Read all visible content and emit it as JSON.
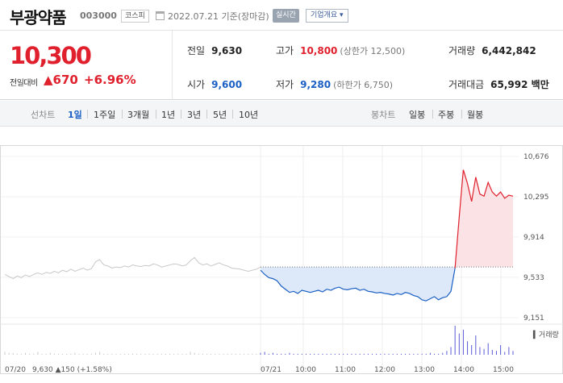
{
  "header": {
    "stock_name": "부광약품",
    "stock_code": "003000",
    "market": "코스피",
    "date_text": "2022.07.21  기준(장마감)",
    "realtime_label": "실시간",
    "company_btn": "기업개요 ▾"
  },
  "price": {
    "current": "10,300",
    "change_label": "전일대비",
    "change_value": "▲670",
    "change_pct": "+6.96%"
  },
  "stats": {
    "prev_label": "전일",
    "prev_value": "9,630",
    "high_label": "고가",
    "high_value": "10,800",
    "high_sub": "(상한가 12,500)",
    "volume_label": "거래량",
    "volume_value": "6,442,842",
    "open_label": "시가",
    "open_value": "9,600",
    "low_label": "저가",
    "low_value": "9,280",
    "low_sub": "(하한가 6,750)",
    "amount_label": "거래대금",
    "amount_value": "65,992 백만"
  },
  "tabs": {
    "line_label": "선차트",
    "line_items": [
      "1일",
      "1주일",
      "3개월",
      "1년",
      "3년",
      "5년",
      "10년"
    ],
    "active_line": "1일",
    "candle_label": "봉차트",
    "candle_items": [
      "일봉",
      "주봉",
      "월봉"
    ]
  },
  "colors": {
    "up": "#e0202d",
    "down": "#1a5fc4",
    "prev_day_line": "#c8c8c8",
    "fill_down": "#dde8f8",
    "fill_up": "#fbe3e5"
  },
  "chart_data": {
    "type": "line",
    "ylim": [
      9151,
      10676
    ],
    "y_ticks": [
      10676,
      10295,
      9914,
      9533,
      9151
    ],
    "y_tick_labels": [
      "10,676",
      "10,295",
      "9,914",
      "9,533",
      "9,151"
    ],
    "x_tick_labels": [
      "07/21",
      "10:00",
      "11:00",
      "12:00",
      "13:00",
      "14:00",
      "15:00"
    ],
    "reference_price": 9630,
    "volume_label": "거래량",
    "prev_day": {
      "date": "07/20",
      "summary": "9,630 ▲150 (+1.58%)",
      "values": [
        9560,
        9540,
        9520,
        9545,
        9530,
        9555,
        9540,
        9560,
        9575,
        9560,
        9580,
        9570,
        9590,
        9575,
        9600,
        9585,
        9610,
        9590,
        9605,
        9620,
        9600,
        9615,
        9680,
        9700,
        9650,
        9640,
        9620,
        9630,
        9625,
        9640,
        9630,
        9650,
        9640,
        9635,
        9645,
        9640,
        9660,
        9650,
        9630,
        9640,
        9650,
        9660,
        9655,
        9640,
        9650,
        9690,
        9720,
        9670,
        9650,
        9660,
        9640,
        9655,
        9670,
        9650,
        9640,
        9620,
        9615,
        9610,
        9600,
        9590,
        9600,
        9610,
        9630
      ]
    },
    "today": {
      "values": [
        9600,
        9560,
        9530,
        9520,
        9500,
        9450,
        9420,
        9390,
        9400,
        9380,
        9410,
        9400,
        9390,
        9400,
        9410,
        9395,
        9420,
        9410,
        9430,
        9440,
        9420,
        9415,
        9425,
        9430,
        9410,
        9420,
        9400,
        9395,
        9385,
        9390,
        9380,
        9375,
        9365,
        9380,
        9370,
        9390,
        9380,
        9360,
        9350,
        9320,
        9310,
        9330,
        9350,
        9320,
        9340,
        9350,
        9400,
        9620,
        10100,
        10550,
        10420,
        10250,
        10480,
        10320,
        10300,
        10430,
        10340,
        10300,
        10340,
        10280,
        10310,
        10300
      ]
    },
    "volume_today": [
      2,
      3,
      1,
      2,
      1,
      1,
      1,
      2,
      1,
      1,
      1,
      1,
      1,
      1,
      1,
      1,
      1,
      1,
      1,
      1,
      1,
      1,
      1,
      1,
      1,
      1,
      1,
      1,
      1,
      1,
      1,
      1,
      1,
      1,
      1,
      1,
      1,
      1,
      1,
      1,
      1,
      2,
      1,
      1,
      2,
      4,
      8,
      30,
      22,
      26,
      14,
      10,
      20,
      8,
      6,
      12,
      5,
      4,
      10,
      3,
      8,
      4
    ],
    "volume_prev": [
      3,
      2,
      2,
      1,
      1,
      2,
      1,
      1,
      3,
      1,
      1,
      2,
      1,
      1,
      1,
      1,
      1,
      2,
      1,
      1,
      1,
      1,
      2,
      3,
      1,
      1,
      1,
      1,
      1,
      1,
      1,
      1,
      1,
      1,
      1,
      1,
      1,
      1,
      1,
      1,
      1,
      1,
      1,
      1,
      1,
      3,
      2,
      1,
      1,
      1,
      1,
      1,
      1,
      1,
      1,
      1,
      1,
      1,
      1,
      1,
      1,
      1,
      2
    ]
  }
}
